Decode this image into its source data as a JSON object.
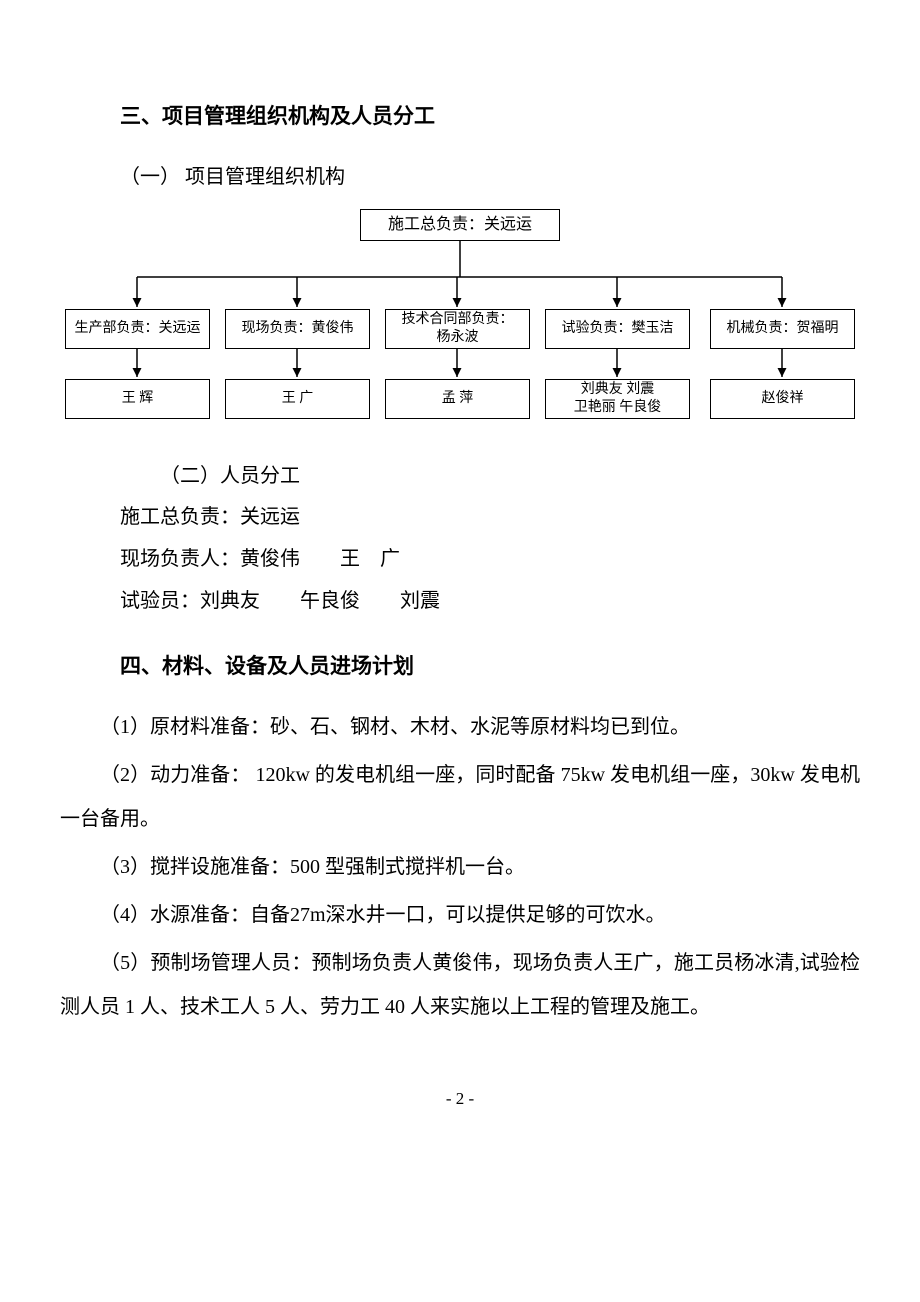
{
  "headings": {
    "h3": "三、项目管理组织机构及人员分工",
    "sub1": "（一） 项目管理组织机构",
    "sub2": "（二）人员分工",
    "h4": "四、材料、设备及人员进场计划"
  },
  "org": {
    "top": "施工总负责：关远运",
    "mid": [
      "生产部负责：关远运",
      "现场负责：黄俊伟",
      "技术合同部负责：\n杨永波",
      "试验负责：樊玉洁",
      "机械负责：贺福明"
    ],
    "bot": [
      "王  辉",
      "王  广",
      "孟  萍",
      "刘典友  刘震\n卫艳丽  午良俊",
      "赵俊祥"
    ],
    "line_color": "#000000",
    "box_border": "#000000",
    "font_size_top": 16,
    "font_size_child": 14
  },
  "people": {
    "l1": "施工总负责：关远运",
    "l2": "现场负责人：黄俊伟　　王　广",
    "l3": "试验员：刘典友　　午良俊　　刘震"
  },
  "plan": {
    "p1": "（1）原材料准备：砂、石、钢材、木材、水泥等原材料均已到位。",
    "p2": "（2）动力准备： 120kw 的发电机组一座，同时配备 75kw 发电机组一座，30kw 发电机一台备用。",
    "p3": "（3）搅拌设施准备：500 型强制式搅拌机一台。",
    "p4": "（4）水源准备：自备27m深水井一口，可以提供足够的可饮水。",
    "p5": "（5）预制场管理人员：预制场负责人黄俊伟，现场负责人王广，施工员杨冰清,试验检测人员 1 人、技术工人 5 人、劳力工 40 人来实施以上工程的管理及施工。"
  },
  "page_number": "- 2 -"
}
